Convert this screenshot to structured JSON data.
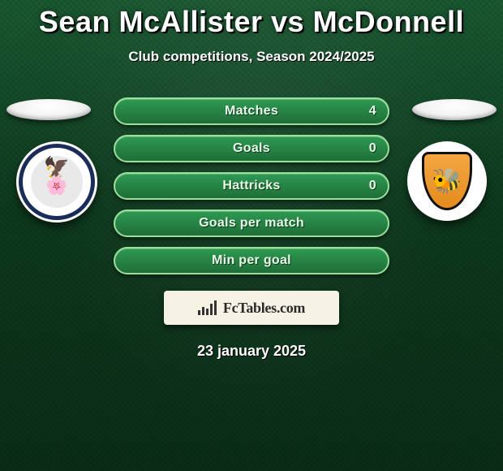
{
  "title": "Sean McAllister vs McDonnell",
  "subtitle": "Club competitions, Season 2024/2025",
  "date": "23 january 2025",
  "watermark": "FcTables.com",
  "colors": {
    "pill_border": "#9adf9a",
    "pill_grad_top": "#2e9a52",
    "pill_grad_bottom": "#1f6e38",
    "title_color": "#ffffff",
    "badge_bg": "#f7f3e4",
    "background_top": "#1a5a32",
    "background_bottom": "#0a2e17"
  },
  "crests": {
    "left": {
      "ring_color": "#1a2d5a",
      "inner_color": "#e9e9e9",
      "top_glyph": "🦅",
      "mid_glyph": "🌸"
    },
    "right": {
      "bg_color": "#ffffff",
      "shield_grad_top": "#f4a742",
      "shield_grad_bottom": "#e38b1e",
      "shield_border": "#111111",
      "glyph": "🐝"
    }
  },
  "stats": [
    {
      "label": "Matches",
      "value": "4"
    },
    {
      "label": "Goals",
      "value": "0"
    },
    {
      "label": "Hattricks",
      "value": "0"
    },
    {
      "label": "Goals per match",
      "value": ""
    },
    {
      "label": "Min per goal",
      "value": ""
    }
  ]
}
